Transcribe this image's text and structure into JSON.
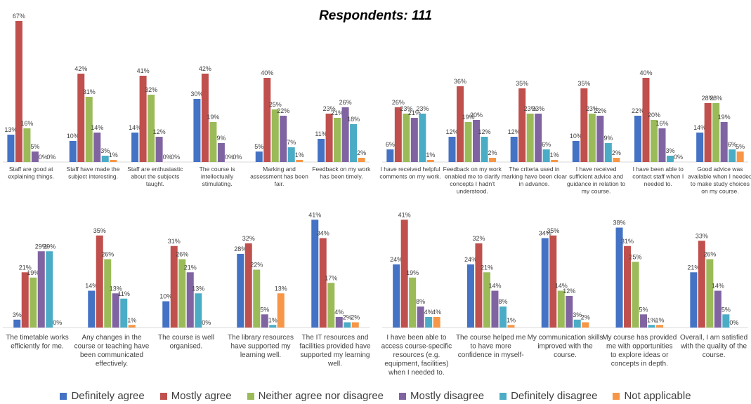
{
  "title": "Respondents: 111",
  "chart_data": {
    "type": "bar",
    "title": "Respondents: 111",
    "value_format": "percent",
    "ylim": [
      0,
      70
    ],
    "legend_position": "bottom",
    "series": [
      {
        "name": "Definitely agree",
        "color": "#4472C4"
      },
      {
        "name": "Mostly agree",
        "color": "#C0504D"
      },
      {
        "name": "Neither agree nor disagree",
        "color": "#9BBB59"
      },
      {
        "name": "Mostly disagree",
        "color": "#8064A2"
      },
      {
        "name": "Definitely disagree",
        "color": "#4BACC6"
      },
      {
        "name": "Not applicable",
        "color": "#F79646"
      }
    ],
    "panels": [
      {
        "group": "top-left",
        "categories": [
          {
            "label": [
              "Staff are good at",
              "explaining things."
            ],
            "values": [
              13,
              67,
              16,
              5,
              0,
              0
            ]
          },
          {
            "label": [
              "Staff have made the",
              "subject interesting."
            ],
            "values": [
              10,
              42,
              31,
              14,
              3,
              1
            ]
          },
          {
            "label": [
              "Staff are enthusiastic",
              "about the subjects",
              "taught."
            ],
            "values": [
              14,
              41,
              32,
              12,
              0,
              0
            ]
          },
          {
            "label": [
              "The course is",
              "intellectually",
              "stimulating."
            ],
            "values": [
              30,
              42,
              19,
              9,
              0,
              0
            ]
          },
          {
            "label": [
              "Marking and",
              "assessment has been",
              "fair."
            ],
            "values": [
              5,
              40,
              25,
              22,
              7,
              1
            ]
          },
          {
            "label": [
              "Feedback on my work",
              "has been timely."
            ],
            "values": [
              11,
              23,
              21,
              26,
              18,
              2
            ]
          }
        ]
      },
      {
        "group": "top-right",
        "categories": [
          {
            "label": [
              "I have received helpful",
              "comments on my work."
            ],
            "values": [
              6,
              26,
              23,
              21,
              23,
              1
            ]
          },
          {
            "label": [
              "Feedback on my work",
              "enabled me to clarify",
              "concepts I hadn't",
              "understood."
            ],
            "values": [
              12,
              36,
              19,
              20,
              12,
              2
            ]
          },
          {
            "label": [
              "The criteria used in",
              "marking have been clear",
              "in advance."
            ],
            "values": [
              12,
              35,
              23,
              23,
              6,
              1
            ]
          },
          {
            "label": [
              "I have received",
              "sufficient advice and",
              "guidance in relation to",
              "my course."
            ],
            "values": [
              10,
              35,
              23,
              22,
              9,
              2
            ]
          },
          {
            "label": [
              "I have been able to",
              "contact staff when I",
              "needed to."
            ],
            "values": [
              22,
              40,
              20,
              16,
              3,
              0
            ]
          },
          {
            "label": [
              "Good advice was",
              "available when I needed",
              "to make study choices",
              "on my course."
            ],
            "values": [
              14,
              28,
              28,
              19,
              6,
              5
            ]
          }
        ]
      },
      {
        "group": "bottom-left",
        "categories": [
          {
            "label": [
              "The timetable works",
              "efficiently for me."
            ],
            "values": [
              3,
              21,
              19,
              29,
              29,
              0
            ]
          },
          {
            "label": [
              "Any changes in the",
              "course or teaching have",
              "been communicated",
              "effectively."
            ],
            "values": [
              14,
              35,
              26,
              13,
              11,
              1
            ]
          },
          {
            "label": [
              "The course is well",
              "organised."
            ],
            "values": [
              10,
              31,
              26,
              21,
              13,
              0
            ]
          },
          {
            "label": [
              "The library resources",
              "have supported my",
              "learning well."
            ],
            "values": [
              28,
              32,
              22,
              5,
              1,
              13
            ]
          },
          {
            "label": [
              "The IT resources and",
              "facilities provided have",
              "supported my learning",
              "well."
            ],
            "values": [
              41,
              34,
              17,
              4,
              2,
              2
            ]
          }
        ]
      },
      {
        "group": "bottom-right",
        "categories": [
          {
            "label": [
              "I have been able to",
              "access course-specific",
              "resources (e.g.",
              "equipment, facilities)",
              "when I needed to."
            ],
            "values": [
              24,
              41,
              19,
              8,
              4,
              4
            ]
          },
          {
            "label": [
              "The course helped me",
              "to have more",
              "confidence in myself-"
            ],
            "values": [
              24,
              32,
              21,
              14,
              8,
              1
            ]
          },
          {
            "label": [
              "My communication skills",
              "improved with the",
              "course."
            ],
            "values": [
              34,
              35,
              14,
              12,
              3,
              2
            ]
          },
          {
            "label": [
              "My course has provided",
              "me with opportunities",
              "to explore ideas or",
              "concepts in depth."
            ],
            "values": [
              38,
              31,
              25,
              5,
              1,
              1
            ]
          },
          {
            "label": [
              "Overall, I am satisfied",
              "with the quality of the",
              "course."
            ],
            "values": [
              21,
              33,
              26,
              14,
              5,
              0
            ]
          }
        ]
      }
    ]
  }
}
